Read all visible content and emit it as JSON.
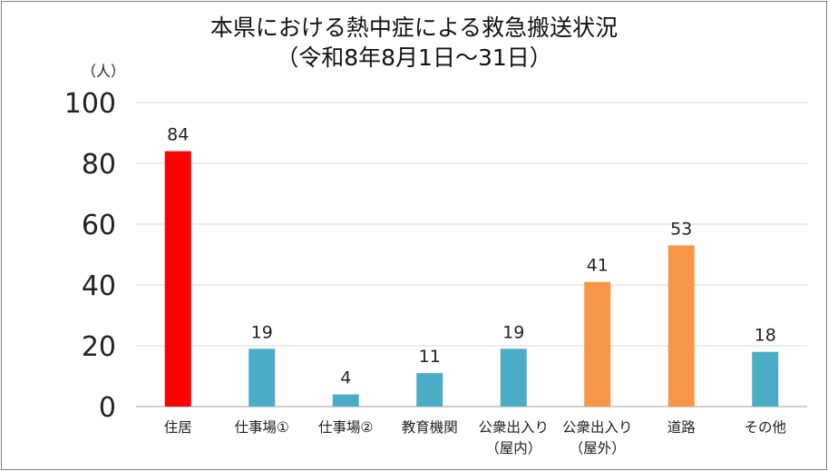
{
  "chart_data": {
    "type": "bar",
    "title": "本県における熱中症による救急搬送状況",
    "subtitle": "（令和8年8月1日～31日）",
    "ylabel": "（人）",
    "ylim": [
      0,
      100
    ],
    "yticks": [
      0,
      20,
      40,
      60,
      80,
      100
    ],
    "grid": true,
    "categories": [
      [
        "住居"
      ],
      [
        "仕事場①"
      ],
      [
        "仕事場②"
      ],
      [
        "教育機関"
      ],
      [
        "公衆出入り",
        "（屋内）"
      ],
      [
        "公衆出入り",
        "（屋外）"
      ],
      [
        "道路"
      ],
      [
        "その他"
      ]
    ],
    "values": [
      84,
      19,
      4,
      11,
      19,
      41,
      53,
      18
    ],
    "bar_colors": [
      "#ff0000",
      "#4bacc6",
      "#4bacc6",
      "#4bacc6",
      "#4bacc6",
      "#f79646",
      "#f79646",
      "#4bacc6"
    ],
    "data_labels": true
  },
  "colors": {
    "grid": "#d9d9d9",
    "axis": "#bfbfbf",
    "text": "#222222"
  }
}
